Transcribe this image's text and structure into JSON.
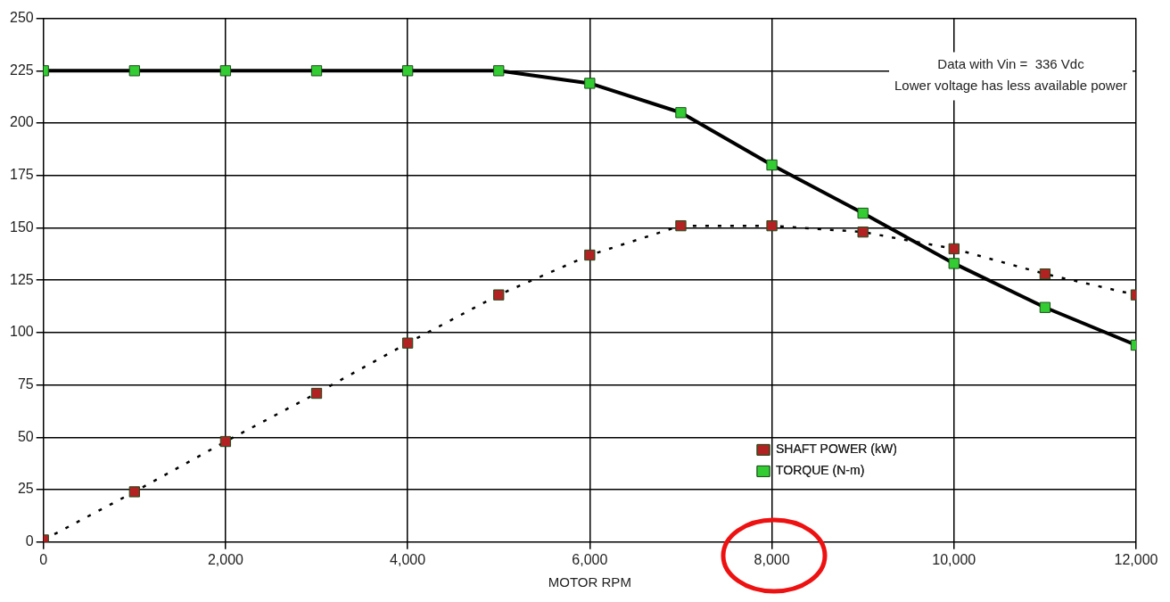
{
  "chart_data": {
    "type": "line",
    "xlabel": "MOTOR RPM",
    "x": [
      0,
      1000,
      2000,
      3000,
      4000,
      5000,
      6000,
      7000,
      8000,
      9000,
      10000,
      11000,
      12000
    ],
    "series": [
      {
        "name": "SHAFT POWER (kW)",
        "color": "#b22222",
        "line_style": "dashed",
        "marker": "square",
        "values": [
          1,
          24,
          48,
          71,
          95,
          118,
          137,
          151,
          151,
          148,
          140,
          128,
          118
        ]
      },
      {
        "name": "TORQUE (N-m)",
        "color": "#33cc33",
        "line_style": "solid",
        "marker": "square",
        "values": [
          225,
          225,
          225,
          225,
          225,
          225,
          219,
          205,
          180,
          157,
          133,
          112,
          94
        ]
      }
    ],
    "xlim": [
      0,
      12000
    ],
    "xticks": [
      0,
      {
        "value": 2000,
        "label": "2,000"
      },
      {
        "value": 4000,
        "label": "4,000"
      },
      {
        "value": 6000,
        "label": "6,000"
      },
      {
        "value": 8000,
        "label": "8,000"
      },
      {
        "value": 10000,
        "label": "10,000"
      },
      {
        "value": 12000,
        "label": "12,000"
      }
    ],
    "ylim": [
      0,
      250
    ],
    "yticks": [
      0,
      25,
      50,
      75,
      100,
      125,
      150,
      175,
      200,
      225,
      250
    ],
    "grid": true,
    "legend": "bottom right",
    "annotations": [
      "Data with Vin =  336 Vdc",
      "Lower voltage has less available power"
    ]
  }
}
